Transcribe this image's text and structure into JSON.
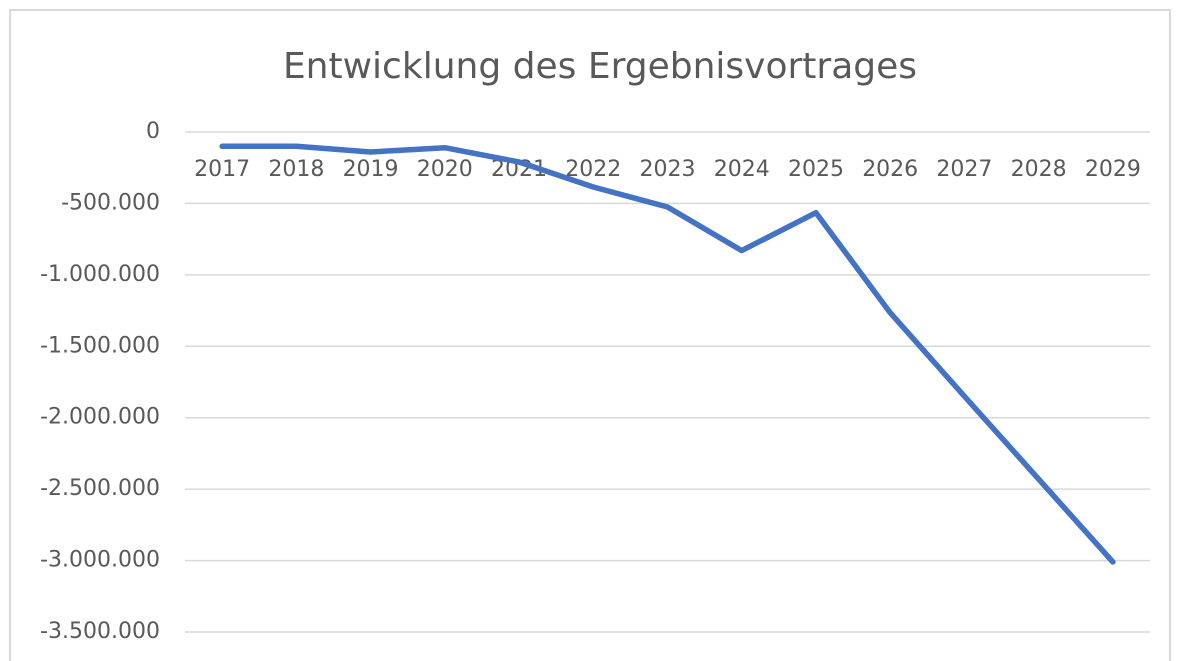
{
  "chart_data": {
    "type": "line",
    "title": "Entwicklung des Ergebnisvortrages",
    "categories": [
      "2017",
      "2018",
      "2019",
      "2020",
      "2021",
      "2022",
      "2023",
      "2024",
      "2025",
      "2026",
      "2027",
      "2028",
      "2029"
    ],
    "series": [
      {
        "name": "Ergebnisvortrag",
        "color": "#4472c4",
        "values": [
          -100000,
          -100000,
          -140000,
          -110000,
          -210000,
          -385000,
          -525000,
          -830000,
          -565000,
          -1265000,
          -1850000,
          -2430000,
          -3010000
        ]
      }
    ],
    "ylim": [
      -3500000,
      0
    ],
    "yticks": [
      {
        "value": -3500000,
        "label": "-3.500.000"
      },
      {
        "value": -3000000,
        "label": "-3.000.000"
      },
      {
        "value": -2500000,
        "label": "-2.500.000"
      },
      {
        "value": -2000000,
        "label": "-2.000.000"
      },
      {
        "value": -1500000,
        "label": "-1.500.000"
      },
      {
        "value": -1000000,
        "label": "-1.000.000"
      },
      {
        "value": -500000,
        "label": "-500.000"
      },
      0
    ],
    "grid": true
  }
}
